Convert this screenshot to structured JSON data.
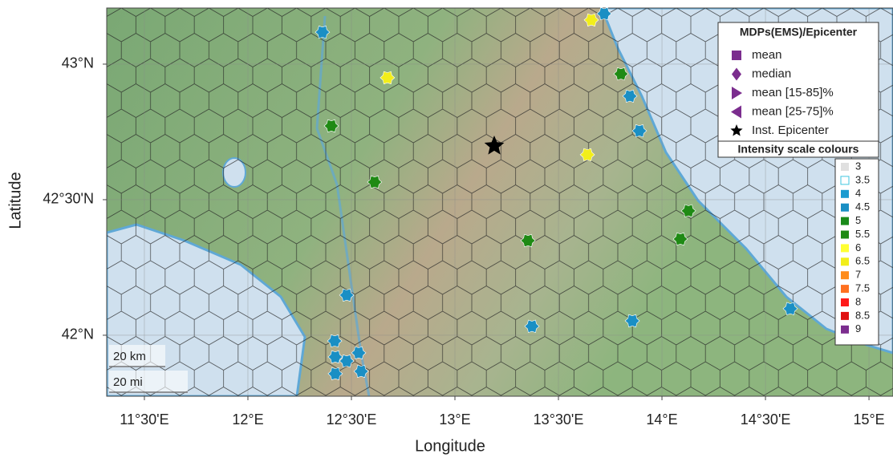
{
  "chart_data": {
    "type": "map",
    "x_label": "Longitude",
    "y_label": "Latitude",
    "xlim": [
      11.318,
      15.116
    ],
    "ylim": [
      41.775,
      43.207
    ],
    "xticks": [
      {
        "value": 11.5,
        "label": "11°30'E"
      },
      {
        "value": 12,
        "label": "12°E"
      },
      {
        "value": 12.5,
        "label": "12°30'E"
      },
      {
        "value": 13,
        "label": "13°E"
      },
      {
        "value": 13.5,
        "label": "13°30'E"
      },
      {
        "value": 14,
        "label": "14°E"
      },
      {
        "value": 14.5,
        "label": "14°30'E"
      },
      {
        "value": 15,
        "label": "15°E"
      }
    ],
    "yticks": [
      {
        "value": 42,
        "label": "42°N"
      },
      {
        "value": 42.5,
        "label": "42°30'N"
      },
      {
        "value": 43,
        "label": "43°N"
      }
    ],
    "grid": true,
    "series": [
      {
        "color": "#1a8fc4",
        "x": [
          12.36,
          13.721,
          13.845,
          13.891,
          12.477,
          13.372,
          13.857,
          14.62,
          12.419,
          12.422,
          12.535,
          12.477,
          12.422,
          12.547
        ],
        "y": [
          43.118,
          43.186,
          42.882,
          42.754,
          42.148,
          42.033,
          42.053,
          42.098,
          41.979,
          41.92,
          41.935,
          41.905,
          41.858,
          41.867
        ]
      },
      {
        "color": "#1f8a14",
        "x": [
          12.403,
          12.612,
          13.353,
          13.802,
          14.128,
          14.089
        ],
        "y": [
          42.772,
          42.565,
          42.349,
          42.964,
          42.459,
          42.355
        ]
      },
      {
        "color": "#f2ee1a",
        "x": [
          13.659,
          12.674,
          13.64
        ],
        "y": [
          43.163,
          42.95,
          42.666
        ]
      }
    ],
    "epicenter": {
      "x": 13.19,
      "y": 42.698,
      "color": "#000000"
    },
    "legend_mdp": {
      "title": "MDPs(EMS)/Epicenter",
      "color": "#7b2d8e",
      "items": [
        "mean",
        "median",
        "mean [15-85]%",
        "mean [25-75]%",
        "Inst. Epicenter"
      ]
    },
    "legend_intensity": {
      "title": "Intensity scale colours",
      "items": [
        {
          "label": "3",
          "color": "#e0e0e0"
        },
        {
          "label": "3.5",
          "color": "#ffffff"
        },
        {
          "label": "4",
          "color": "#1a9bd0"
        },
        {
          "label": "4.5",
          "color": "#1a8fc4"
        },
        {
          "label": "5",
          "color": "#1a8a1a"
        },
        {
          "label": "5.5",
          "color": "#1f8a14"
        },
        {
          "label": "6",
          "color": "#ffff33"
        },
        {
          "label": "6.5",
          "color": "#f2ee1a"
        },
        {
          "label": "7",
          "color": "#ff8c1a"
        },
        {
          "label": "7.5",
          "color": "#ff7020"
        },
        {
          "label": "8",
          "color": "#ff1a1a"
        },
        {
          "label": "8.5",
          "color": "#e01010"
        },
        {
          "label": "9",
          "color": "#7b2d8e"
        }
      ]
    },
    "scale_bar": [
      "20 km",
      "20 mi"
    ]
  }
}
